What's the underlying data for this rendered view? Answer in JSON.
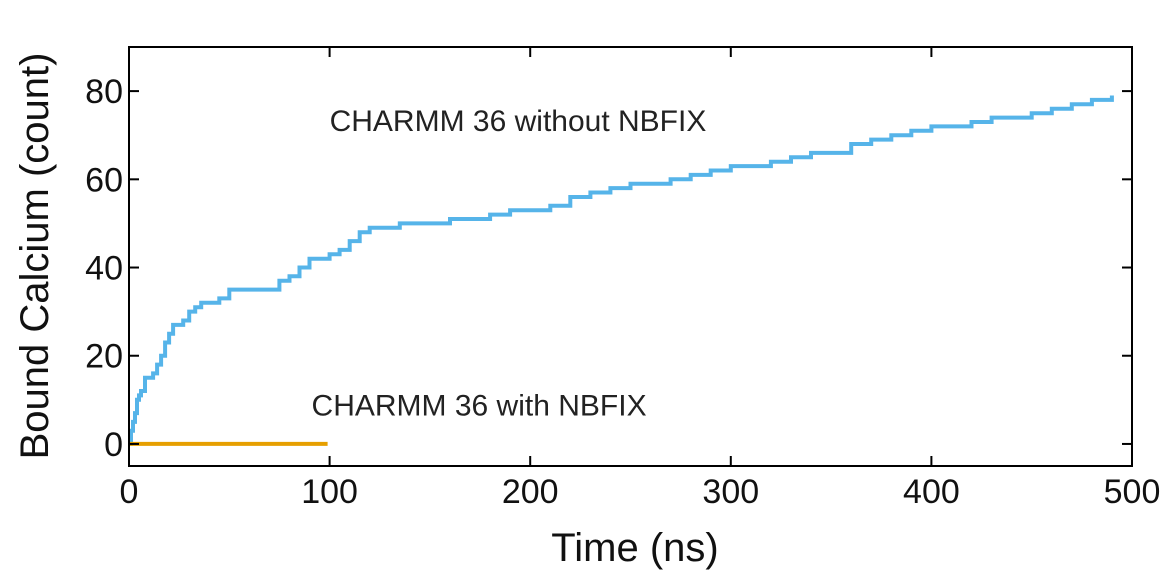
{
  "chart_data": {
    "type": "line",
    "xlabel": "Time (ns)",
    "ylabel": "Bound Calcium (count)",
    "xlim": [
      0,
      500
    ],
    "ylim": [
      -5,
      90
    ],
    "xticks": [
      0,
      100,
      200,
      300,
      400,
      500
    ],
    "yticks": [
      0,
      20,
      40,
      60,
      80
    ],
    "grid": false,
    "legend": "none",
    "series": [
      {
        "name": "CHARMM 36 without NBFIX",
        "color": "#56B4E9",
        "x": [
          0,
          1,
          2,
          3,
          4,
          5,
          6,
          8,
          10,
          12,
          14,
          16,
          18,
          20,
          22,
          24,
          27,
          30,
          33,
          36,
          40,
          45,
          50,
          55,
          60,
          65,
          70,
          75,
          80,
          85,
          90,
          95,
          100,
          105,
          110,
          115,
          120,
          125,
          130,
          135,
          140,
          150,
          160,
          170,
          180,
          190,
          200,
          210,
          220,
          230,
          240,
          250,
          260,
          270,
          280,
          290,
          300,
          310,
          320,
          330,
          340,
          350,
          360,
          370,
          380,
          390,
          400,
          410,
          420,
          430,
          440,
          450,
          460,
          470,
          480,
          490
        ],
        "y": [
          0,
          3,
          5,
          7,
          10,
          11,
          12,
          15,
          15,
          16,
          18,
          20,
          23,
          25,
          27,
          27,
          28,
          30,
          31,
          32,
          32,
          33,
          35,
          35,
          35,
          35,
          35,
          37,
          38,
          40,
          42,
          42,
          43,
          44,
          46,
          48,
          49,
          49,
          49,
          50,
          50,
          50,
          51,
          51,
          52,
          53,
          53,
          54,
          56,
          57,
          58,
          59,
          59,
          60,
          61,
          62,
          63,
          63,
          64,
          65,
          66,
          66,
          68,
          69,
          70,
          71,
          72,
          72,
          73,
          74,
          74,
          75,
          76,
          77,
          78,
          79
        ]
      },
      {
        "name": "CHARMM 36 with NBFIX",
        "color": "#E69F00",
        "x": [
          0,
          99
        ],
        "y": [
          0,
          0
        ]
      }
    ],
    "annotations": [
      {
        "text": "CHARMM 36 without NBFIX",
        "x": 100,
        "y": 71
      },
      {
        "text": "CHARMM 36 with NBFIX",
        "x": 91,
        "y": 6.5
      }
    ]
  }
}
